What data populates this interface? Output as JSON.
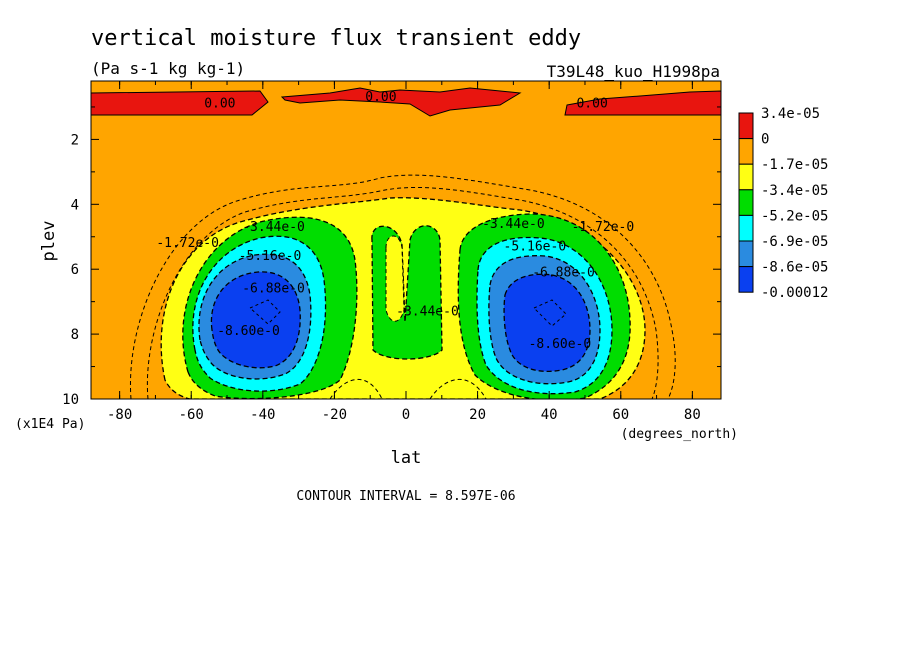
{
  "title": "vertical moisture flux transient eddy",
  "units": "(Pa s-1 kg kg-1)",
  "run_name": "T39L48_kuo_H1998pa",
  "contour_interval": "CONTOUR INTERVAL = 8.597E-06",
  "chart_data": {
    "type": "contour",
    "xlabel": "lat",
    "xunits": "(degrees_north)",
    "ylabel": "plev",
    "yunits": "(x1E4 Pa)",
    "xlim": [
      -88,
      88
    ],
    "ylim": [
      10,
      0.2
    ],
    "x_ticks": [
      "-80",
      "-60",
      "-40",
      "-20",
      "0",
      "20",
      "40",
      "60",
      "80"
    ],
    "y_ticks": [
      "2",
      "4",
      "6",
      "8",
      "10"
    ],
    "colorbar": {
      "labels": [
        "3.4e-05",
        "0",
        "-1.7e-05",
        "-3.4e-05",
        "-5.2e-05",
        "-6.9e-05",
        "-8.6e-05",
        "-0.00012"
      ],
      "colors": [
        "#e8150f",
        "#ffa500",
        "#ffff14",
        "#00dd00",
        "#00ffff",
        "#2a8be0",
        "#0a40f0"
      ]
    },
    "contour_labels": [
      {
        "text": "0.00",
        "lat": -52,
        "plev": 0.9
      },
      {
        "text": "0.00",
        "lat": -7,
        "plev": 0.7
      },
      {
        "text": "0.00",
        "lat": 52,
        "plev": 0.9
      },
      {
        "text": "-1.72e-0",
        "lat": -61,
        "plev": 5.2
      },
      {
        "text": "-3.44e-0",
        "lat": -37,
        "plev": 4.7
      },
      {
        "text": "-5.16e-0",
        "lat": -38,
        "plev": 5.6
      },
      {
        "text": "-6.88e-0",
        "lat": -37,
        "plev": 6.6
      },
      {
        "text": "-8.60e-0",
        "lat": -44,
        "plev": 7.9
      },
      {
        "text": "-3.44e-0",
        "lat": 6,
        "plev": 7.3
      },
      {
        "text": "-3.44e-0",
        "lat": 30,
        "plev": 4.6
      },
      {
        "text": "-1.72e-0",
        "lat": 55,
        "plev": 4.7
      },
      {
        "text": "-5.16e-0",
        "lat": 36,
        "plev": 5.3
      },
      {
        "text": "-6.88e-0",
        "lat": 44,
        "plev": 6.1
      },
      {
        "text": "-8.60e-0",
        "lat": 43,
        "plev": 8.3
      }
    ]
  }
}
